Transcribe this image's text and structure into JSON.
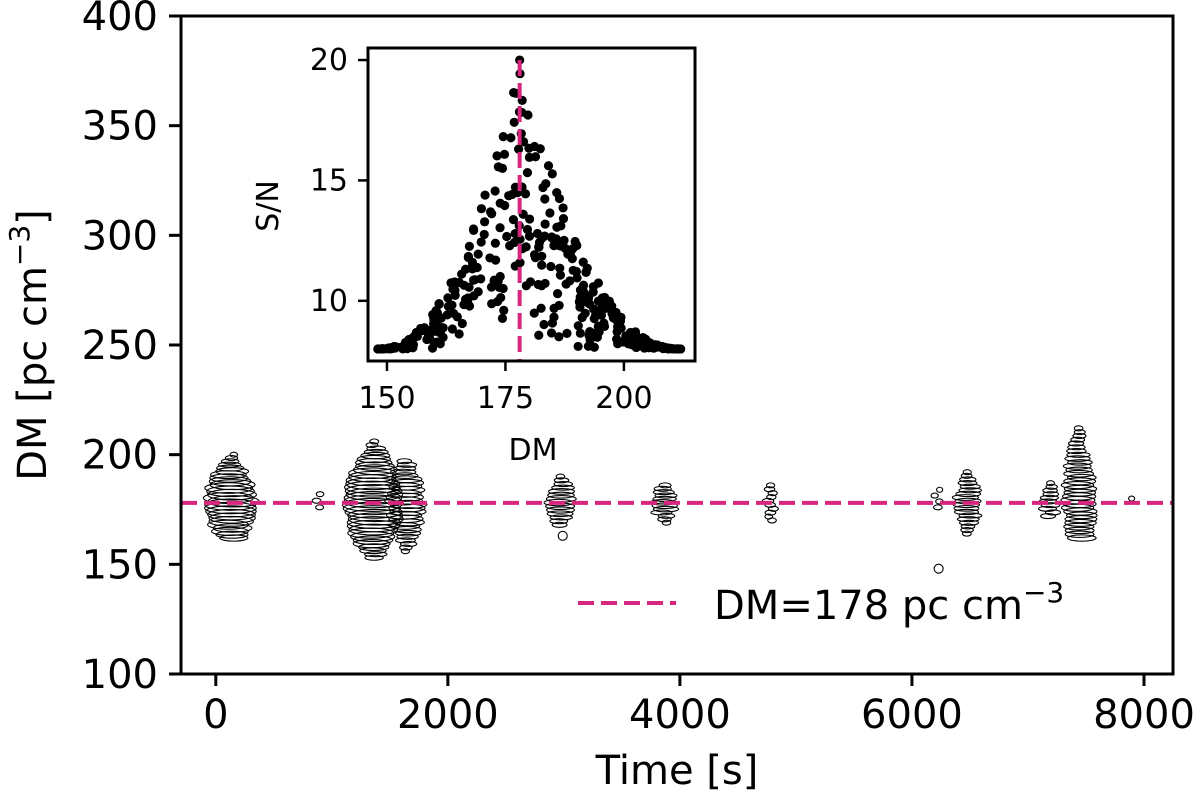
{
  "colors": {
    "accent": "#d6267e",
    "axis": "#000000",
    "marker_edge": "#000000",
    "inset_point": "#000000"
  },
  "chart_data": [
    {
      "type": "scatter",
      "title": "",
      "xlabel": "Time [s]",
      "ylabel": "DM [pc cm",
      "ylabel_unit_sup": "−3",
      "ylabel_close": "]",
      "xlim": [
        -300,
        8250
      ],
      "ylim": [
        100,
        400
      ],
      "x_ticks": [
        0,
        2000,
        4000,
        6000,
        8000
      ],
      "y_ticks": [
        100,
        150,
        200,
        250,
        300,
        350,
        400
      ],
      "grid": false,
      "marker": "open-circle, size scales with S/N",
      "reference_line": {
        "orientation": "horizontal",
        "y": 178,
        "style": "dashed",
        "color": "#d6267e"
      },
      "legend": {
        "position": "lower-right",
        "label": "DM=178 pc cm",
        "label_sup": "−3"
      },
      "clusters": [
        {
          "time": 130,
          "dm_min": 162,
          "dm_max": 200,
          "peak_snr": 20,
          "count": 26
        },
        {
          "time": 880,
          "dm_min": 176,
          "dm_max": 182,
          "peak_snr": 8,
          "count": 3
        },
        {
          "time": 1360,
          "dm_min": 153,
          "dm_max": 206,
          "peak_snr": 22,
          "count": 34
        },
        {
          "time": 1640,
          "dm_min": 156,
          "dm_max": 197,
          "peak_snr": 16,
          "count": 26
        },
        {
          "time": 2980,
          "dm_min": 168,
          "dm_max": 190,
          "peak_snr": 14,
          "count": 14
        },
        {
          "time": 3860,
          "dm_min": 169,
          "dm_max": 186,
          "peak_snr": 13,
          "count": 12
        },
        {
          "time": 4780,
          "dm_min": 170,
          "dm_max": 186,
          "peak_snr": 9,
          "count": 10
        },
        {
          "time": 6220,
          "dm_min": 176,
          "dm_max": 184,
          "peak_snr": 8,
          "count": 4
        },
        {
          "time": 6480,
          "dm_min": 164,
          "dm_max": 192,
          "peak_snr": 13,
          "count": 18
        },
        {
          "time": 7190,
          "dm_min": 172,
          "dm_max": 187,
          "peak_snr": 11,
          "count": 10
        },
        {
          "time": 7440,
          "dm_min": 162,
          "dm_max": 212,
          "peak_snr": 15,
          "count": 30
        },
        {
          "time": 7880,
          "dm_min": 179,
          "dm_max": 181,
          "peak_snr": 8,
          "count": 1
        }
      ],
      "isolated_points": [
        {
          "time": 2990,
          "dm": 163
        },
        {
          "time": 6230,
          "dm": 148
        }
      ]
    },
    {
      "type": "scatter",
      "title": "",
      "xlabel": "DM",
      "ylabel": "S/N",
      "xlim": [
        146,
        215
      ],
      "ylim": [
        7.5,
        20.5
      ],
      "x_ticks": [
        150,
        175,
        200
      ],
      "y_ticks": [
        10,
        15,
        20
      ],
      "grid": false,
      "marker": "filled-circle",
      "reference_line": {
        "orientation": "vertical",
        "x": 178,
        "style": "dashed",
        "color": "#d6267e"
      },
      "peak": {
        "dm": 178,
        "snr": 20
      },
      "dm_range": [
        148,
        212
      ],
      "snr_floor": 8,
      "point_count": 400
    }
  ]
}
